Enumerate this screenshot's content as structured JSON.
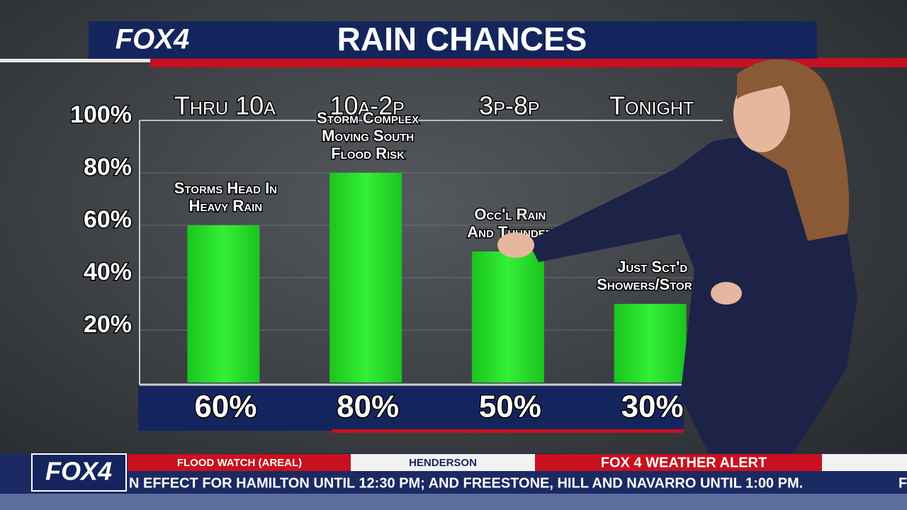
{
  "header": {
    "logo": "FOX4",
    "title": "RAIN CHANCES"
  },
  "chart_data": {
    "type": "bar",
    "categories": [
      "Thru 10a",
      "10a-2p",
      "3p-8p",
      "Tonight"
    ],
    "values": [
      60,
      80,
      50,
      30
    ],
    "value_labels": [
      "60%",
      "80%",
      "50%",
      "30%"
    ],
    "annotations": [
      [
        "Storms Head In",
        "Heavy Rain"
      ],
      [
        "Storm Complex",
        "Moving South",
        "Flood Risk"
      ],
      [
        "Occ'l Rain",
        "And Thunder"
      ],
      [
        "Just Sct'd",
        "Showers/Storms"
      ]
    ],
    "color": "#27e22b",
    "ylim": [
      0,
      100
    ],
    "yticks": [
      {
        "value": 20,
        "label": "20%"
      },
      {
        "value": 40,
        "label": "40%"
      },
      {
        "value": 60,
        "label": "60%"
      },
      {
        "value": 80,
        "label": "80%"
      },
      {
        "value": 100,
        "label": "100%"
      }
    ],
    "grid": true
  },
  "ticker": {
    "logo": "FOX4",
    "tabs": [
      "FLOOD WATCH (AREAL)",
      "HENDERSON",
      "FOX 4 WEATHER ALERT"
    ],
    "crawl": "N EFFECT FOR HAMILTON UNTIL 12:30 PM; AND FREESTONE, HILL AND NAVARRO UNTIL 1:00 PM.",
    "next": "F"
  }
}
